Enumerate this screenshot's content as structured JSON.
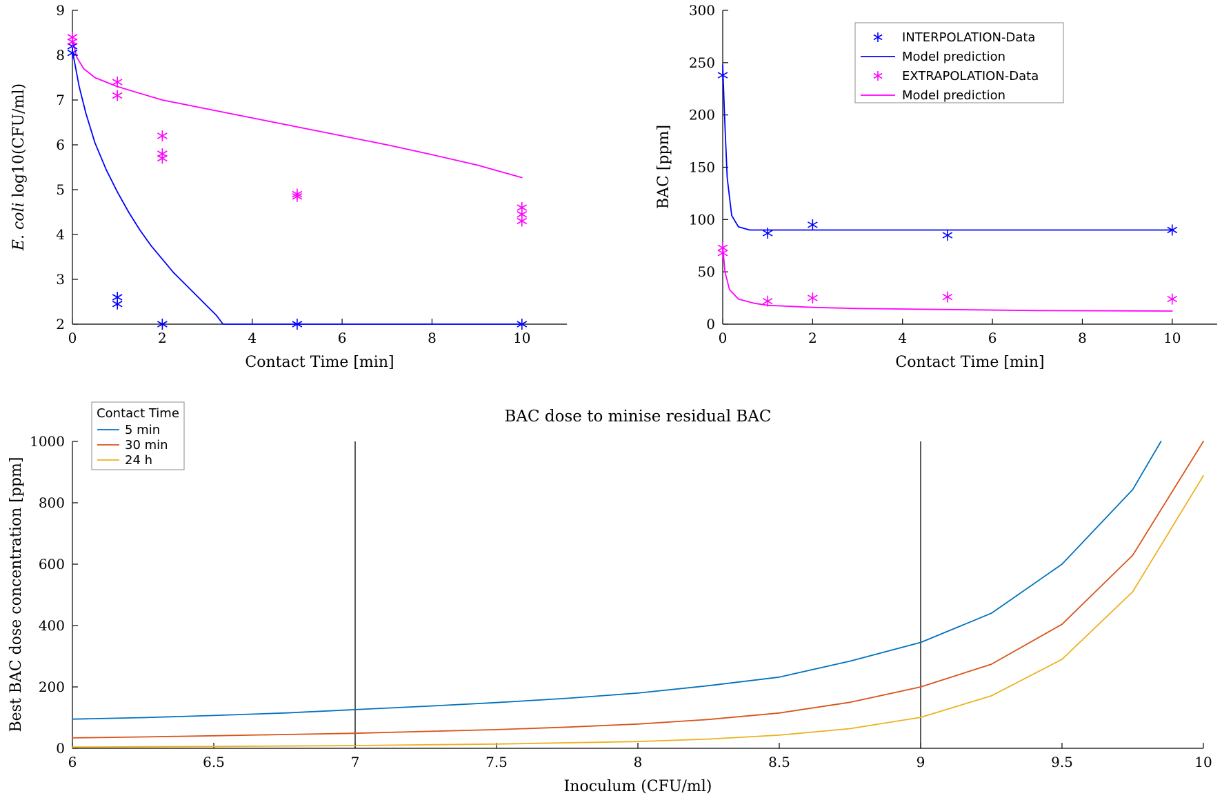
{
  "figure": {
    "background": "#ffffff"
  },
  "colors": {
    "interpolation": "#0000ff",
    "extrapolation": "#ff00ff",
    "dose_5min": "#0072BD",
    "dose_30min": "#D95319",
    "dose_24h": "#EDB120",
    "axis": "#000000"
  },
  "chart_data": [
    {
      "id": "ecoli",
      "type": "scatter",
      "title": "",
      "xlabel": "Contact Time [min]",
      "ylabel_parts": [
        {
          "text": "E. coli",
          "italic": true
        },
        {
          "text": " log10(CFU/ml)",
          "italic": false
        }
      ],
      "xlim": [
        0,
        11
      ],
      "ylim": [
        2,
        9
      ],
      "xticks": [
        0,
        2,
        4,
        6,
        8,
        10
      ],
      "yticks": [
        2,
        3,
        4,
        5,
        6,
        7,
        8,
        9
      ],
      "grid": false,
      "series": [
        {
          "name": "INTERPOLATION-Data",
          "mode": "markers",
          "marker": "asterisk",
          "color": "#0000ff",
          "x": [
            0,
            0,
            1,
            1,
            2,
            5,
            10
          ],
          "y": [
            8.05,
            8.2,
            2.45,
            2.6,
            2.0,
            2.0,
            2.0
          ]
        },
        {
          "name": "Model prediction interpolation",
          "mode": "line",
          "color": "#0000ff",
          "x": [
            0,
            0.15,
            0.3,
            0.5,
            0.75,
            1,
            1.25,
            1.5,
            1.75,
            2,
            2.25,
            2.5,
            2.75,
            3,
            3.2,
            3.35,
            10
          ],
          "y": [
            8.1,
            7.3,
            6.7,
            6.05,
            5.45,
            4.95,
            4.5,
            4.1,
            3.75,
            3.45,
            3.15,
            2.9,
            2.65,
            2.4,
            2.2,
            2.0,
            2.0
          ]
        },
        {
          "name": "EXTRAPOLATION-Data",
          "mode": "markers",
          "marker": "asterisk",
          "color": "#ff00ff",
          "x": [
            0,
            0,
            1,
            1,
            2,
            2,
            2,
            5,
            5,
            10,
            10,
            10
          ],
          "y": [
            8.4,
            8.3,
            7.4,
            7.1,
            6.2,
            5.8,
            5.7,
            4.9,
            4.85,
            4.6,
            4.45,
            4.3
          ]
        },
        {
          "name": "Model prediction extrapolation",
          "mode": "line",
          "color": "#ff00ff",
          "x": [
            0,
            0.1,
            0.25,
            0.5,
            1,
            1.5,
            2,
            3,
            4,
            5,
            6,
            7,
            8,
            9,
            10
          ],
          "y": [
            8.35,
            7.95,
            7.7,
            7.5,
            7.3,
            7.15,
            7.0,
            6.8,
            6.6,
            6.4,
            6.2,
            6.0,
            5.78,
            5.55,
            5.27
          ]
        }
      ]
    },
    {
      "id": "bac",
      "type": "scatter",
      "title": "",
      "xlabel": "Contact Time [min]",
      "ylabel_parts": [
        {
          "text": "BAC [ppm]",
          "italic": false
        }
      ],
      "xlim": [
        0,
        11
      ],
      "ylim": [
        0,
        300
      ],
      "xticks": [
        0,
        2,
        4,
        6,
        8,
        10
      ],
      "yticks": [
        0,
        50,
        100,
        150,
        200,
        250,
        300
      ],
      "grid": false,
      "legend": {
        "position": "northeast",
        "entries": [
          {
            "label": "INTERPOLATION-Data",
            "sample": "marker",
            "color": "#0000ff"
          },
          {
            "label": "Model prediction",
            "sample": "line",
            "color": "#0000ff"
          },
          {
            "label": "EXTRAPOLATION-Data",
            "sample": "marker",
            "color": "#ff00ff"
          },
          {
            "label": "Model prediction",
            "sample": "line",
            "color": "#ff00ff"
          }
        ]
      },
      "series": [
        {
          "name": "INTERPOLATION-Data",
          "mode": "markers",
          "marker": "asterisk",
          "color": "#0000ff",
          "x": [
            0,
            1,
            2,
            5,
            10
          ],
          "y": [
            238,
            87,
            95,
            85,
            90
          ]
        },
        {
          "name": "Model prediction interpolation",
          "mode": "line",
          "color": "#0000ff",
          "x": [
            0,
            0.04,
            0.1,
            0.2,
            0.35,
            0.6,
            1,
            2,
            5,
            10
          ],
          "y": [
            248,
            200,
            140,
            104,
            93,
            90,
            90,
            90,
            90,
            90
          ]
        },
        {
          "name": "EXTRAPOLATION-Data",
          "mode": "markers",
          "marker": "asterisk",
          "color": "#ff00ff",
          "x": [
            0,
            0,
            1,
            2,
            5,
            10
          ],
          "y": [
            73,
            68,
            22,
            25,
            26,
            24
          ]
        },
        {
          "name": "Model prediction extrapolation",
          "mode": "line",
          "color": "#ff00ff",
          "x": [
            0,
            0.05,
            0.15,
            0.35,
            0.7,
            1,
            2,
            3,
            5,
            7,
            10
          ],
          "y": [
            74,
            50,
            33,
            24,
            20,
            18,
            16,
            15,
            14,
            13,
            12.5
          ]
        }
      ]
    },
    {
      "id": "dose",
      "type": "line",
      "title": "BAC dose to minise residual BAC",
      "xlabel": "Inoculum (CFU/ml)",
      "ylabel_parts": [
        {
          "text": "Best BAC dose concentration [ppm]",
          "italic": false
        }
      ],
      "xlim": [
        6,
        10
      ],
      "ylim": [
        0,
        1000
      ],
      "xticks": [
        6,
        6.5,
        7,
        7.5,
        8,
        8.5,
        9,
        9.5,
        10
      ],
      "yticks": [
        0,
        200,
        400,
        600,
        800,
        1000
      ],
      "grid": false,
      "vlines": [
        7,
        9
      ],
      "legend": {
        "title": "Contact Time",
        "position": "northwest",
        "entries": [
          {
            "label": "5 min",
            "sample": "line",
            "color": "#0072BD"
          },
          {
            "label": "30 min",
            "sample": "line",
            "color": "#D95319"
          },
          {
            "label": "24 h",
            "sample": "line",
            "color": "#EDB120"
          }
        ]
      },
      "series": [
        {
          "name": "5 min",
          "mode": "line",
          "color": "#0072BD",
          "x": [
            6,
            6.25,
            6.5,
            6.75,
            7,
            7.25,
            7.5,
            7.75,
            8,
            8.25,
            8.5,
            8.75,
            9,
            9.25,
            9.5,
            9.75,
            9.85
          ],
          "y": [
            95,
            100,
            107,
            115,
            126,
            137,
            149,
            163,
            180,
            204,
            232,
            284,
            345,
            440,
            600,
            843,
            1000
          ]
        },
        {
          "name": "30 min",
          "mode": "line",
          "color": "#D95319",
          "x": [
            6,
            6.25,
            6.5,
            6.75,
            7,
            7.25,
            7.5,
            7.75,
            8,
            8.25,
            8.5,
            8.75,
            9,
            9.25,
            9.5,
            9.75,
            10
          ],
          "y": [
            34,
            37,
            41,
            45,
            49,
            55,
            61,
            69,
            79,
            94,
            115,
            150,
            200,
            274,
            404,
            629,
            1000
          ]
        },
        {
          "name": "24 h",
          "mode": "line",
          "color": "#EDB120",
          "x": [
            6,
            6.5,
            7,
            7.5,
            8,
            8.25,
            8.5,
            8.75,
            9,
            9.25,
            9.5,
            9.75,
            10
          ],
          "y": [
            4,
            6,
            9,
            14,
            22,
            30,
            43,
            64,
            101,
            171,
            290,
            510,
            888
          ]
        }
      ]
    }
  ]
}
